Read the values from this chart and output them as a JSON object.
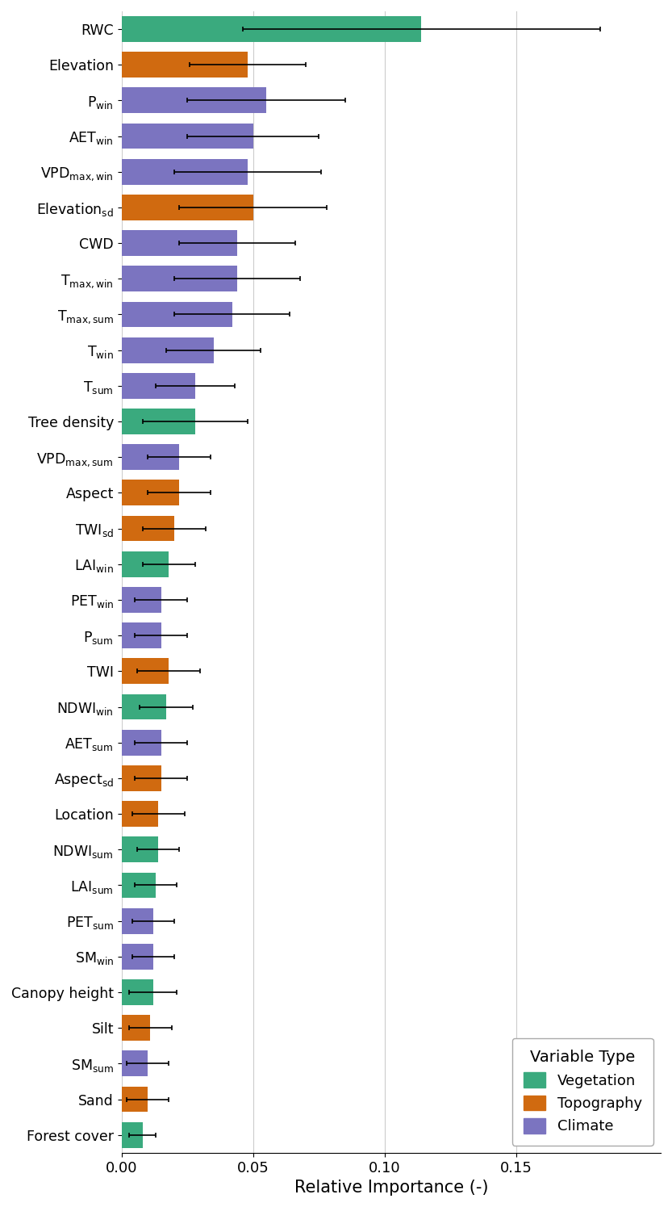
{
  "variables": [
    "RWC",
    "Elevation",
    "P_win",
    "AET_win",
    "VPD_max_win",
    "Elevation_sd",
    "CWD",
    "T_max_win",
    "T_max_sum",
    "T_win",
    "T_sum",
    "Tree density",
    "VPD_max_sum",
    "Aspect",
    "TWI_sd",
    "LAI_win",
    "PET_win",
    "P_sum",
    "TWI",
    "NDWI_win",
    "AET_sum",
    "Aspect_sd",
    "Location",
    "NDWI_sum",
    "LAI_sum",
    "PET_sum",
    "SM_win",
    "Canopy height",
    "Silt",
    "SM_sum",
    "Sand",
    "Forest cover"
  ],
  "values": [
    0.114,
    0.048,
    0.055,
    0.05,
    0.048,
    0.05,
    0.044,
    0.044,
    0.042,
    0.035,
    0.028,
    0.028,
    0.022,
    0.022,
    0.02,
    0.018,
    0.015,
    0.015,
    0.018,
    0.017,
    0.015,
    0.015,
    0.014,
    0.014,
    0.013,
    0.012,
    0.012,
    0.012,
    0.011,
    0.01,
    0.01,
    0.008
  ],
  "errors": [
    0.068,
    0.022,
    0.03,
    0.025,
    0.028,
    0.028,
    0.022,
    0.024,
    0.022,
    0.018,
    0.015,
    0.02,
    0.012,
    0.012,
    0.012,
    0.01,
    0.01,
    0.01,
    0.012,
    0.01,
    0.01,
    0.01,
    0.01,
    0.008,
    0.008,
    0.008,
    0.008,
    0.009,
    0.008,
    0.008,
    0.008,
    0.005
  ],
  "types": [
    "Vegetation",
    "Topography",
    "Climate",
    "Climate",
    "Climate",
    "Topography",
    "Climate",
    "Climate",
    "Climate",
    "Climate",
    "Climate",
    "Vegetation",
    "Climate",
    "Topography",
    "Topography",
    "Vegetation",
    "Climate",
    "Climate",
    "Topography",
    "Vegetation",
    "Climate",
    "Topography",
    "Topography",
    "Vegetation",
    "Vegetation",
    "Climate",
    "Climate",
    "Vegetation",
    "Topography",
    "Climate",
    "Topography",
    "Vegetation"
  ],
  "colors": {
    "Vegetation": "#3aaa7e",
    "Topography": "#d06a10",
    "Climate": "#7b74c0"
  },
  "xlabel": "Relative Importance (-)",
  "legend_title": "Variable Type",
  "xlim": [
    0,
    0.205
  ],
  "xticks": [
    0.0,
    0.05,
    0.1,
    0.15
  ],
  "grid_color": "#cccccc"
}
